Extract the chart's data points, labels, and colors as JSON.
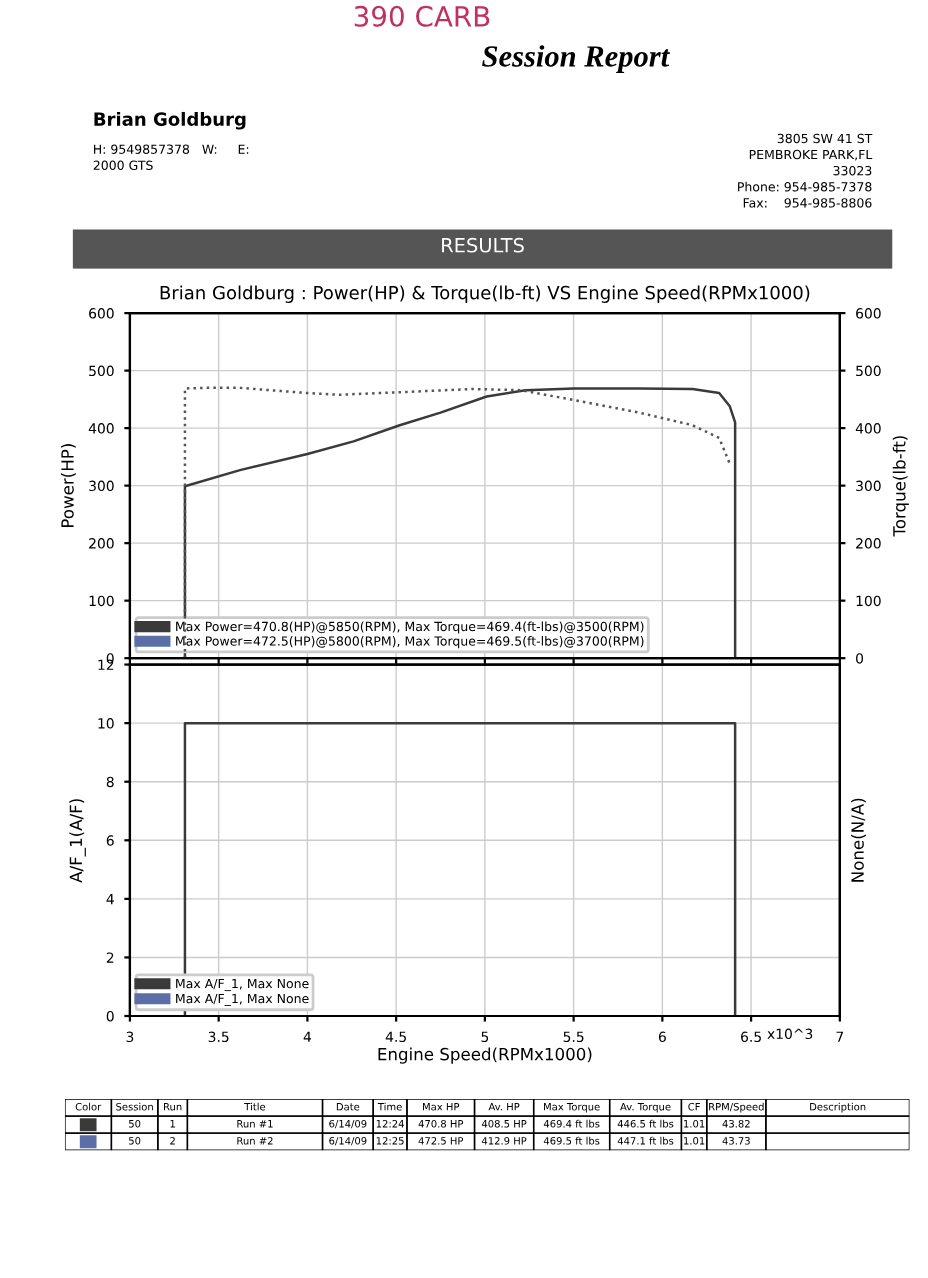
{
  "chart_data": [
    {
      "type": "other",
      "title": "Session Report",
      "annotations": [
        "390 CARB",
        "Brian Goldburg",
        "H: 9549857378   W:     E:",
        "2000 GTS",
        "3805 SW 41 ST",
        "PEMBROKE PARK,FL",
        "33023",
        "Phone: 954-985-7378",
        "Fax:    954-985-8806",
        "RESULTS"
      ]
    },
    {
      "type": "line",
      "title": "Brian Goldburg : Power(HP) & Torque(lb-ft) VS Engine Speed(RPMx1000)",
      "ylabel": "Power(HP)",
      "y2label": "Torque(lb-ft)",
      "xlim": [
        3,
        7
      ],
      "ylim": [
        0,
        600
      ],
      "yticks": [
        0,
        100,
        200,
        300,
        400,
        500,
        600
      ],
      "y2lim": [
        0,
        600
      ],
      "y2ticks": [
        0,
        100,
        200,
        300,
        400,
        500,
        600
      ],
      "xticks": [
        3,
        3.5,
        4,
        4.5,
        5,
        5.5,
        6,
        6.5,
        7
      ],
      "tick_labels": "y",
      "grid": true,
      "legend": "bottom left",
      "series": [
        {
          "name": "Max Power=470.8(HP)@5850(RPM), Max Torque=469.4(ft-lbs)@3500(RPM)",
          "color": "#3a3a3a",
          "line_style": "solid",
          "x": [
            3.31,
            3.31,
            3.62,
            4.0,
            4.26,
            4.52,
            4.75,
            5.01,
            5.23,
            5.5,
            5.87,
            6.17,
            6.32,
            6.38,
            6.41,
            6.41
          ],
          "values": [
            0,
            299,
            327,
            355,
            377,
            405,
            427,
            455,
            466,
            469,
            469,
            468,
            461,
            438,
            410,
            0
          ]
        },
        {
          "color": "#555555",
          "line_style": "dotted",
          "axis": "y2",
          "x": [
            3.31,
            3.31,
            3.43,
            3.62,
            4.0,
            4.18,
            4.56,
            4.93,
            5.2,
            5.5,
            5.87,
            6.17,
            6.32,
            6.38
          ],
          "values": [
            0,
            469,
            470,
            470,
            461,
            458,
            463,
            468,
            466,
            449,
            427,
            405,
            383,
            338
          ]
        },
        {
          "name": "Max Power=472.5(HP)@5800(RPM), Max Torque=469.5(ft-lbs)@3700(RPM)",
          "color": "#5b6fa6",
          "line_style": "solid"
        }
      ]
    },
    {
      "type": "line",
      "ylabel": "A/F_1(A/F)",
      "y2label": "None(N/A)",
      "xlabel": "Engine Speed(RPMx1000)",
      "xlim": [
        3,
        7
      ],
      "ylim": [
        0,
        12
      ],
      "yticks": [
        0,
        2,
        4,
        6,
        8,
        10,
        12
      ],
      "xticks": [
        3,
        3.5,
        4,
        4.5,
        5,
        5.5,
        6,
        6.5,
        7
      ],
      "grid": true,
      "legend": "bottom left",
      "annotations": [
        "x10^3"
      ],
      "series": [
        {
          "name": "Max A/F_1, Max None",
          "color": "#3a3a3a",
          "line_style": "solid",
          "x": [
            3.31,
            3.31,
            6.41,
            6.41
          ],
          "values": [
            0,
            10,
            10,
            0
          ]
        },
        {
          "name": "Max A/F_1, Max None",
          "color": "#5b6fa6",
          "line_style": "solid"
        }
      ]
    },
    {
      "type": "other",
      "annotations": [
        "Color",
        "Session",
        "Run",
        "Title",
        "Date",
        "Time",
        "Max HP",
        "Av. HP",
        "Max Torque",
        "Av. Torque",
        "CF",
        "RPM/Speed",
        "Description",
        null,
        "50",
        "1",
        "Run #1",
        "6/14/09",
        "12:24",
        "470.8 HP",
        "408.5 HP",
        "469.4 ft lbs",
        "446.5 ft lbs",
        "1.01",
        "43.82",
        null,
        null,
        "50",
        "2",
        "Run #2",
        "6/14/09",
        "12:25",
        "472.5 HP",
        "412.9 HP",
        "469.5 ft lbs",
        "447.1 ft lbs",
        "1.01",
        "43.73",
        null
      ]
    }
  ]
}
